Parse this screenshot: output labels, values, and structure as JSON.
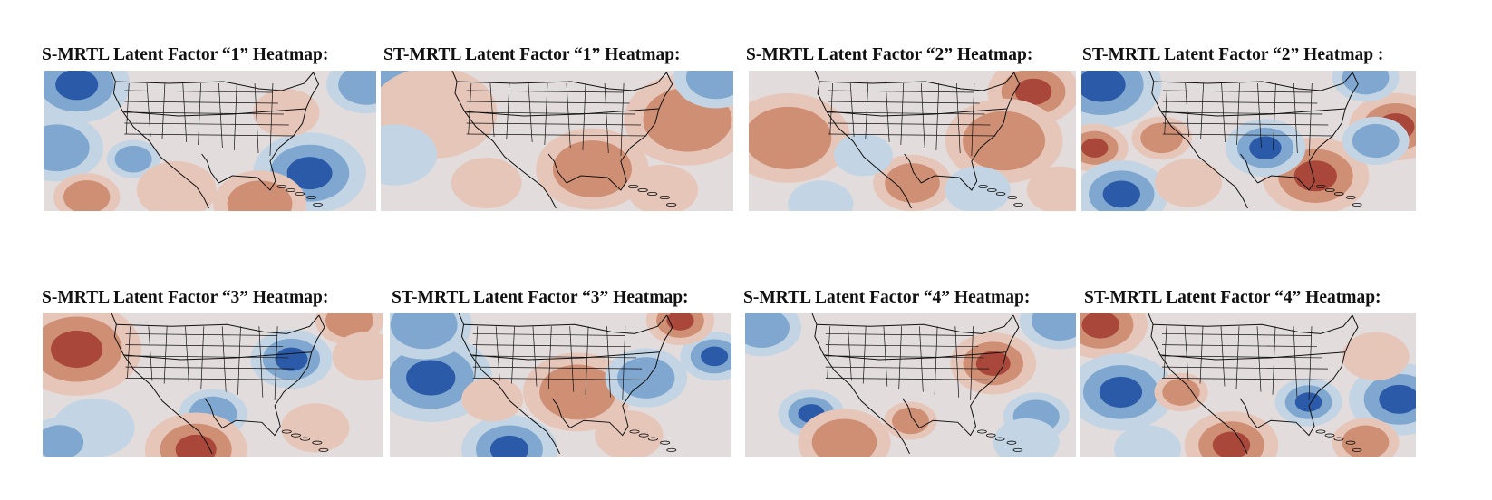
{
  "colors": {
    "negative_strong": "#2b5aa8",
    "negative_mid": "#7fa7cf",
    "negative_light": "#c3d5e4",
    "neutral": "#e2dcdc",
    "positive_light": "#e7c6ba",
    "positive_mid": "#cf8f75",
    "positive_strong": "#a8473a",
    "coastline": "#111111"
  },
  "panels": [
    {
      "title": "S-MRTL Latent Factor “1” Heatmap:",
      "seed": 1
    },
    {
      "title": "ST-MRTL Latent Factor “1” Heatmap:",
      "seed": 2
    },
    {
      "title": "S-MRTL Latent Factor “2” Heatmap:",
      "seed": 3
    },
    {
      "title": "ST-MRTL Latent Factor “2” Heatmap :",
      "seed": 4
    },
    {
      "title": "S-MRTL Latent Factor “3” Heatmap:",
      "seed": 5
    },
    {
      "title": "ST-MRTL Latent Factor “3” Heatmap:",
      "seed": 6
    },
    {
      "title": "S-MRTL Latent Factor “4” Heatmap:",
      "seed": 7
    },
    {
      "title": "ST-MRTL Latent Factor “4” Heatmap:",
      "seed": 8
    }
  ]
}
